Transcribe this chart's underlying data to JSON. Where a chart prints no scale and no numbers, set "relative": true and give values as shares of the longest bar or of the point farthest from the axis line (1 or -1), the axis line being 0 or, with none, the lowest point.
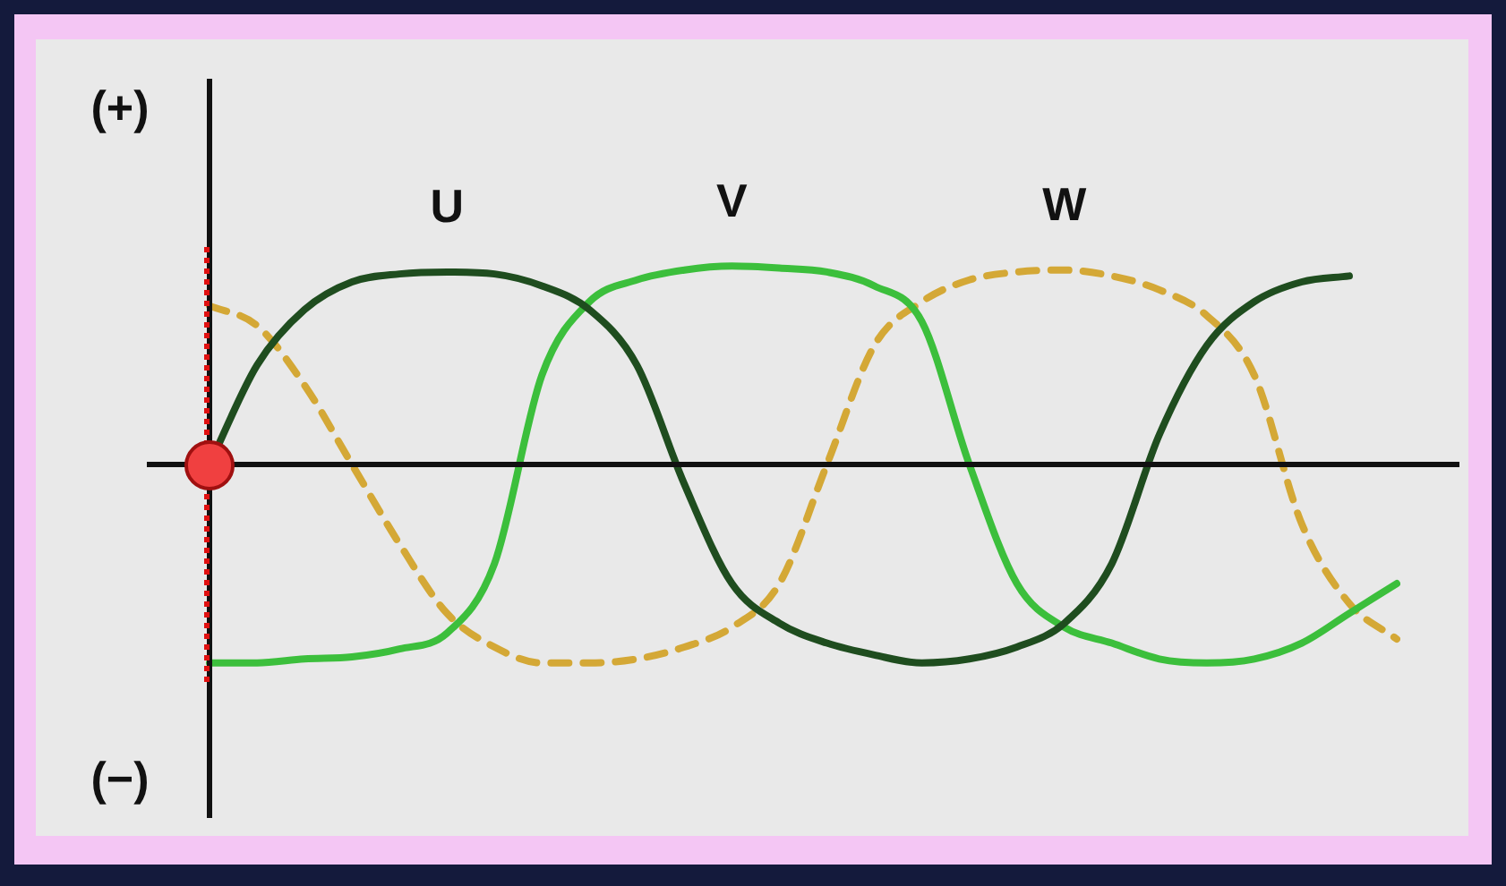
{
  "chart_data": {
    "type": "line",
    "relative": true,
    "legend": false,
    "marker": "none",
    "annotations": [
      "(+)",
      "(−)"
    ],
    "categories": [
      null,
      null,
      null,
      null,
      null,
      null,
      null,
      null,
      null,
      null,
      null,
      null,
      null,
      null,
      null,
      null,
      null,
      null,
      null,
      null,
      null,
      null,
      null,
      null,
      null,
      null
    ],
    "series": [
      {
        "name": "U",
        "color": "#1f4d1f",
        "line_style": "solid",
        "values": [
          0,
          0.5,
          0.78,
          0.92,
          0.96,
          0.97,
          0.96,
          0.9,
          0.78,
          0.5,
          -0.1,
          -0.6,
          -0.8,
          -0.9,
          -0.96,
          -1.0,
          -0.98,
          -0.92,
          -0.8,
          -0.5,
          0.15,
          0.6,
          0.82,
          0.92,
          0.95,
          null
        ]
      },
      {
        "name": "V",
        "color": "#3cbf3c",
        "line_style": "solid",
        "values": [
          -1.0,
          -1.0,
          -0.98,
          -0.97,
          -0.93,
          -0.85,
          -0.5,
          0.45,
          0.82,
          0.93,
          0.98,
          1.0,
          0.99,
          0.97,
          0.9,
          0.72,
          0.0,
          -0.6,
          -0.82,
          -0.9,
          -0.98,
          -1.0,
          -0.98,
          -0.9,
          -0.75,
          -0.6
        ]
      },
      {
        "name": "W",
        "color": "#d4a836",
        "line_style": "dashed",
        "values": [
          0.8,
          0.7,
          0.4,
          0.0,
          -0.4,
          -0.75,
          -0.92,
          -1.0,
          -1.0,
          -0.98,
          -0.92,
          -0.82,
          -0.6,
          0.0,
          0.6,
          0.82,
          0.93,
          0.97,
          0.98,
          0.95,
          0.88,
          0.75,
          0.45,
          -0.3,
          -0.7,
          -0.88
        ]
      }
    ]
  }
}
